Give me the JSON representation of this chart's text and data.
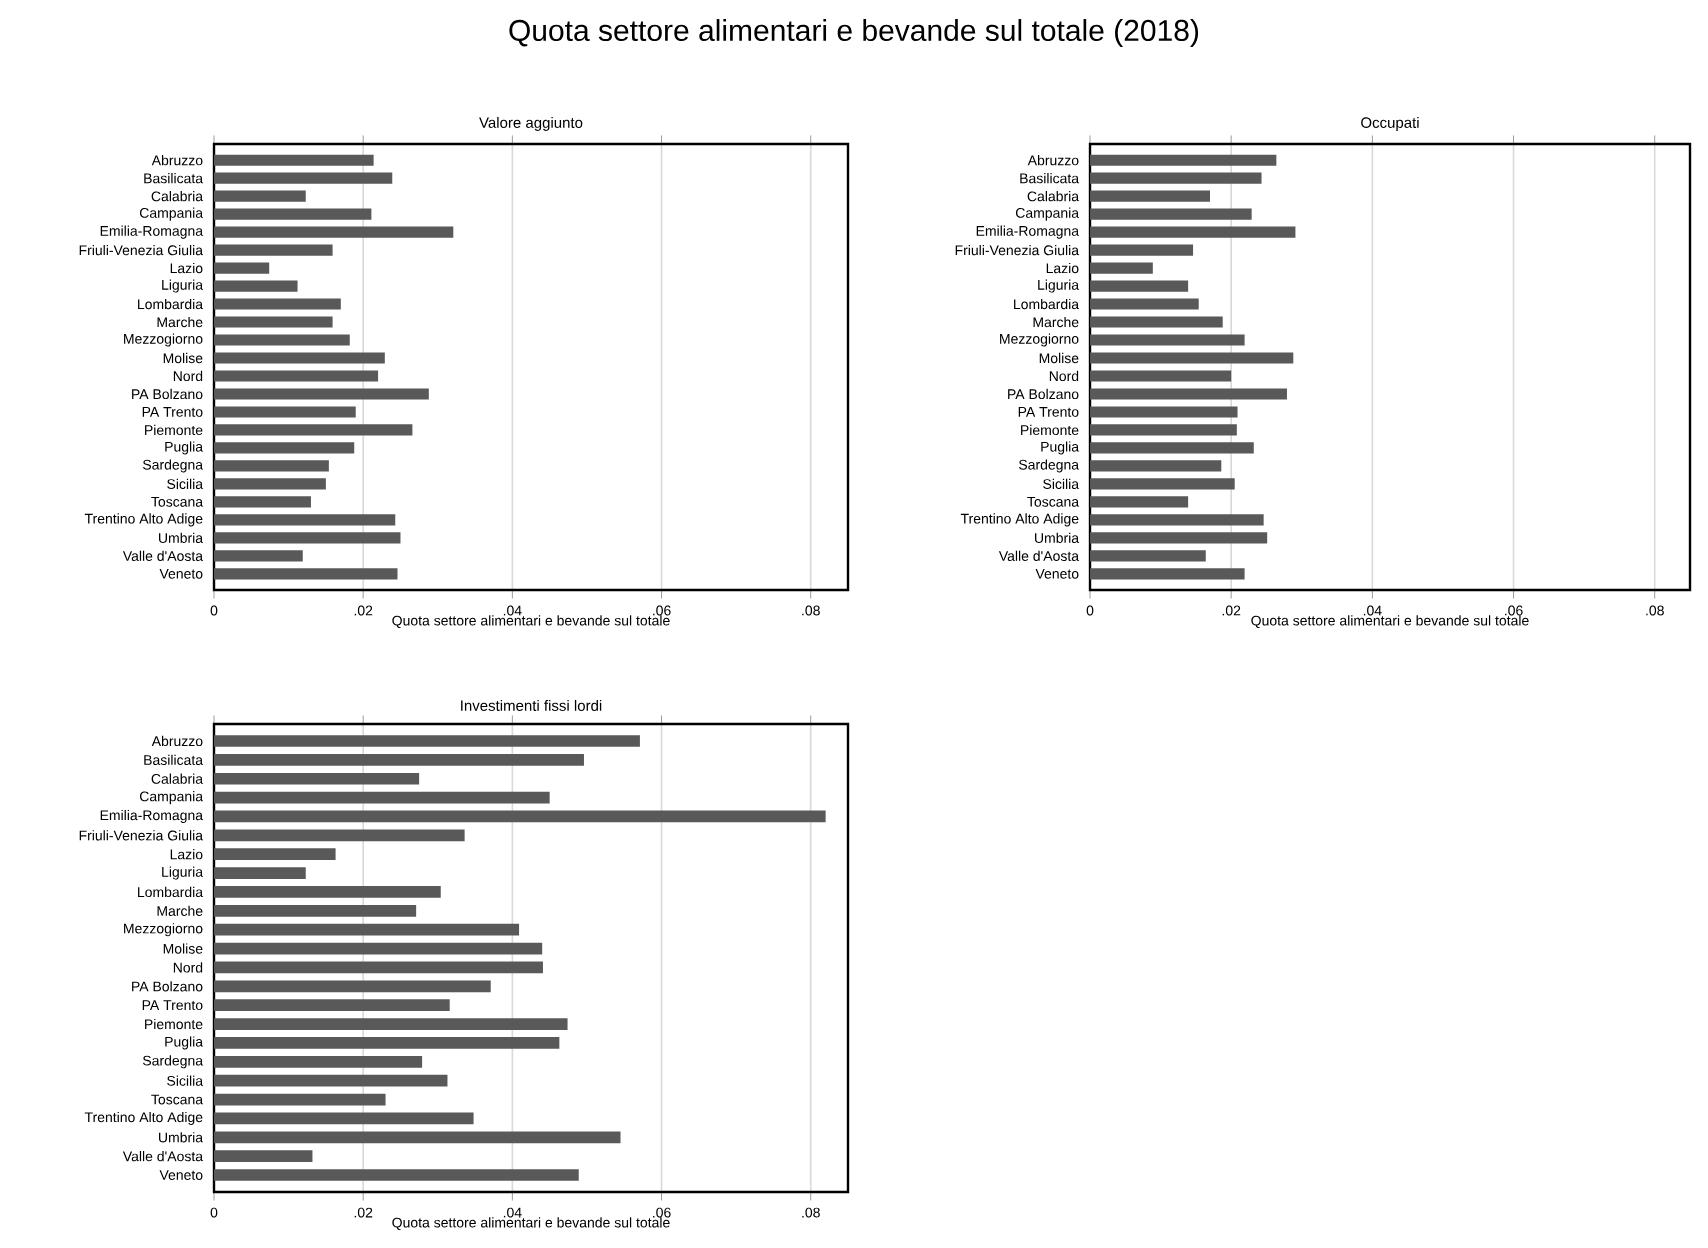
{
  "chart_data": [
    {
      "type": "bar",
      "orientation": "horizontal",
      "title": "Quota settore alimentari e bevande sul totale (2018)",
      "subtitle": "Valore aggiunto",
      "xlabel": "Quota settore alimentari e bevande sul totale",
      "grid": "x",
      "color": "#595959",
      "categories": [
        "Abruzzo",
        "Basilicata",
        "Calabria",
        "Campania",
        "Emilia-Romagna",
        "Friuli-Venezia Giulia",
        "Lazio",
        "Liguria",
        "Lombardia",
        "Marche",
        "Mezzogiorno",
        "Molise",
        "Nord",
        "PA Bolzano",
        "PA Trento",
        "Piemonte",
        "Puglia",
        "Sardegna",
        "Sicilia",
        "Toscana",
        "Trentino Alto Adige",
        "Umbria",
        "Valle d'Aosta",
        "Veneto"
      ],
      "values": [
        0.0214,
        0.0239,
        0.0123,
        0.0211,
        0.0321,
        0.0159,
        0.0074,
        0.0112,
        0.017,
        0.0159,
        0.0182,
        0.0229,
        0.022,
        0.0288,
        0.019,
        0.0266,
        0.0188,
        0.0154,
        0.015,
        0.013,
        0.0243,
        0.025,
        0.0119,
        0.0246
      ],
      "xlim": [
        0,
        0.085
      ],
      "xticks": [
        0,
        {
          "value": 0.02,
          "label": ".02"
        },
        {
          "value": 0.04,
          "label": ".04"
        },
        {
          "value": 0.06,
          "label": ".06"
        },
        {
          "value": 0.08,
          "label": ".08"
        }
      ]
    },
    {
      "type": "bar",
      "orientation": "horizontal",
      "subtitle": "Occupati",
      "xlabel": "Quota settore alimentari e bevande sul totale",
      "grid": "x",
      "color": "#595959",
      "categories": [
        "Abruzzo",
        "Basilicata",
        "Calabria",
        "Campania",
        "Emilia-Romagna",
        "Friuli-Venezia Giulia",
        "Lazio",
        "Liguria",
        "Lombardia",
        "Marche",
        "Mezzogiorno",
        "Molise",
        "Nord",
        "PA Bolzano",
        "PA Trento",
        "Piemonte",
        "Puglia",
        "Sardegna",
        "Sicilia",
        "Toscana",
        "Trentino Alto Adige",
        "Umbria",
        "Valle d'Aosta",
        "Veneto"
      ],
      "values": [
        0.0264,
        0.0243,
        0.017,
        0.0229,
        0.0291,
        0.0146,
        0.0089,
        0.0139,
        0.0154,
        0.0188,
        0.0219,
        0.0288,
        0.02,
        0.0279,
        0.0209,
        0.0208,
        0.0232,
        0.0186,
        0.0205,
        0.0139,
        0.0246,
        0.0251,
        0.0164,
        0.0219
      ],
      "xlim": [
        0,
        0.085
      ],
      "xticks": [
        0,
        {
          "value": 0.02,
          "label": ".02"
        },
        {
          "value": 0.04,
          "label": ".04"
        },
        {
          "value": 0.06,
          "label": ".06"
        },
        {
          "value": 0.08,
          "label": ".08"
        }
      ]
    },
    {
      "type": "bar",
      "orientation": "horizontal",
      "subtitle": "Investimenti fissi lordi",
      "xlabel": "Quota settore alimentari e bevande sul totale",
      "grid": "x",
      "color": "#595959",
      "categories": [
        "Abruzzo",
        "Basilicata",
        "Calabria",
        "Campania",
        "Emilia-Romagna",
        "Friuli-Venezia Giulia",
        "Lazio",
        "Liguria",
        "Lombardia",
        "Marche",
        "Mezzogiorno",
        "Molise",
        "Nord",
        "PA Bolzano",
        "PA Trento",
        "Piemonte",
        "Puglia",
        "Sardegna",
        "Sicilia",
        "Toscana",
        "Trentino Alto Adige",
        "Umbria",
        "Valle d'Aosta",
        "Veneto"
      ],
      "values": [
        0.0571,
        0.0496,
        0.0275,
        0.045,
        0.082,
        0.0336,
        0.0163,
        0.0123,
        0.0304,
        0.0271,
        0.0409,
        0.044,
        0.0441,
        0.0371,
        0.0316,
        0.0474,
        0.0463,
        0.0279,
        0.0313,
        0.023,
        0.0348,
        0.0545,
        0.0132,
        0.0489
      ],
      "xlim": [
        0,
        0.085
      ],
      "xticks": [
        0,
        {
          "value": 0.02,
          "label": ".02"
        },
        {
          "value": 0.04,
          "label": ".04"
        },
        {
          "value": 0.06,
          "label": ".06"
        },
        {
          "value": 0.08,
          "label": ".08"
        }
      ]
    }
  ]
}
